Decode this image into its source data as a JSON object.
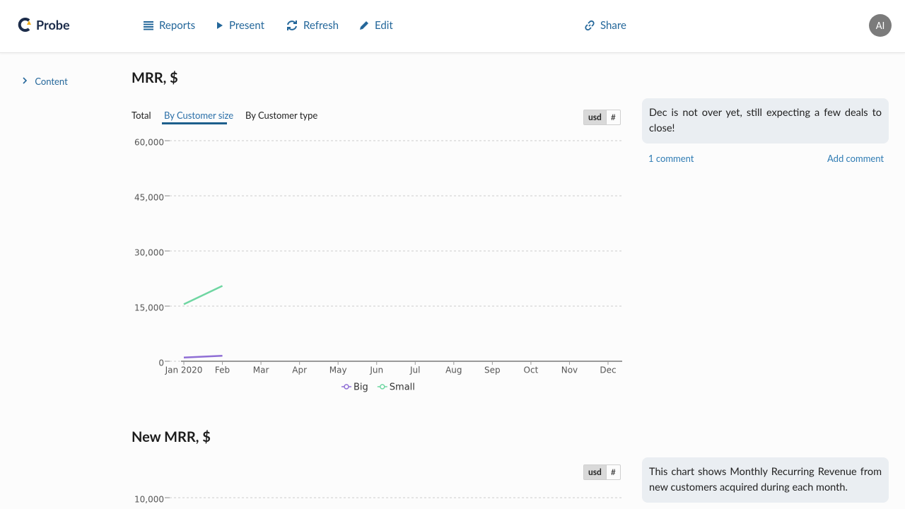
{
  "header": {
    "logo": "Probe",
    "nav": [
      "Reports",
      "Present",
      "Refresh",
      "Edit"
    ],
    "share": "Share",
    "avatar": "AI"
  },
  "sidebar": {
    "content": "Content"
  },
  "sections": [
    {
      "title": "MRR, $",
      "tabs": [
        "Total",
        "By Customer size",
        "By Customer type"
      ],
      "units": [
        "usd",
        "#"
      ],
      "comment": {
        "text": "Dec is not over yet, still expecting a few deals to close!",
        "count": "1 comment",
        "add": "Add comment"
      }
    },
    {
      "title": "New MRR, $",
      "units": [
        "usd",
        "#"
      ],
      "comment": {
        "text": "This chart shows Monthly Recurring Revenue from new customers acquired during each month."
      }
    }
  ],
  "chart_data": [
    {
      "type": "line",
      "categories": [
        "Jan 2020",
        "Feb",
        "Mar",
        "Apr",
        "May",
        "Jun",
        "Jul",
        "Aug",
        "Sep",
        "Oct",
        "Nov",
        "Dec"
      ],
      "series": [
        {
          "name": "Big",
          "color": "#8f6ed5",
          "values": [
            1000,
            1500,
            null,
            null,
            null,
            null,
            null,
            null,
            null,
            null,
            null,
            null
          ]
        },
        {
          "name": "Small",
          "color": "#6fd6a2",
          "values": [
            15500,
            20500,
            null,
            null,
            null,
            null,
            null,
            null,
            null,
            null,
            null,
            null
          ]
        }
      ],
      "ylim": [
        0,
        60000
      ],
      "yticks": [
        0,
        {
          "value": 15000,
          "label": "15,000"
        },
        {
          "value": 30000,
          "label": "30,000"
        },
        {
          "value": 45000,
          "label": "45,000"
        },
        {
          "value": 60000,
          "label": "60,000"
        }
      ],
      "grid": true,
      "legend": "bottom"
    },
    {
      "type": "line",
      "ylim": [
        0,
        10000
      ],
      "yticks": [
        {
          "value": 10000,
          "label": "10,000"
        }
      ],
      "grid": true
    }
  ]
}
